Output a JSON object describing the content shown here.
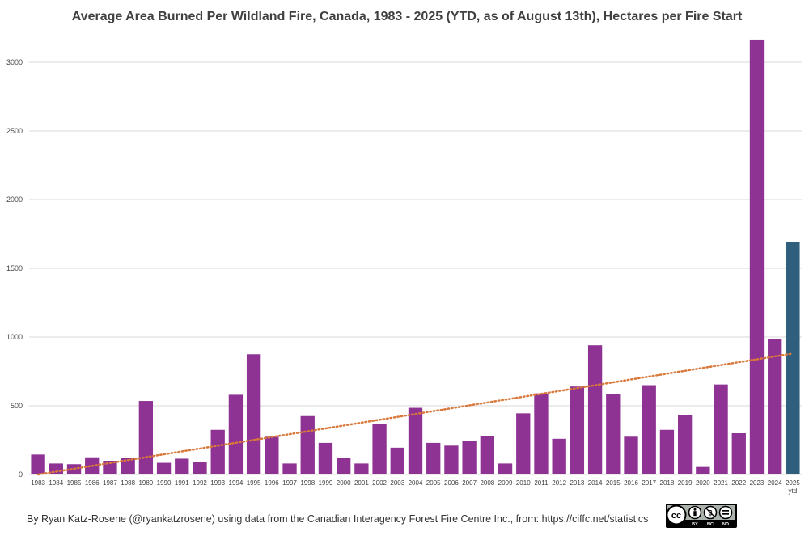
{
  "colors": {
    "bar": "#8e3393",
    "bar_highlight": "#2f5f7c",
    "trend": "#d8783a",
    "grid": "#d9d9d9",
    "text": "#404040"
  },
  "chart_data": {
    "type": "bar",
    "title": "Average Area Burned Per Wildland Fire, Canada, 1983 - 2025 (YTD, as of August 13th), Hectares per Fire Start",
    "xlabel": "",
    "ylabel": "",
    "ylim": [
      0,
      3200
    ],
    "yticks": [
      0,
      500,
      1000,
      1500,
      2000,
      2500,
      3000
    ],
    "grid": true,
    "legend": "none",
    "categories": [
      "1983",
      "1984",
      "1985",
      "1986",
      "1987",
      "1988",
      "1989",
      "1990",
      "1991",
      "1992",
      "1993",
      "1994",
      "1995",
      "1996",
      "1997",
      "1998",
      "1999",
      "2000",
      "2001",
      "2002",
      "2003",
      "2004",
      "2005",
      "2006",
      "2007",
      "2008",
      "2009",
      "2010",
      "2011",
      "2012",
      "2013",
      "2014",
      "2015",
      "2016",
      "2017",
      "2018",
      "2019",
      "2020",
      "2021",
      "2022",
      "2023",
      "2024",
      "2025"
    ],
    "category_sublabels": {
      "2025": "ytd"
    },
    "values": [
      145,
      80,
      75,
      125,
      100,
      120,
      535,
      85,
      115,
      90,
      325,
      580,
      875,
      275,
      80,
      425,
      230,
      120,
      80,
      365,
      195,
      485,
      230,
      210,
      245,
      280,
      80,
      445,
      590,
      260,
      640,
      940,
      585,
      275,
      650,
      325,
      430,
      55,
      655,
      300,
      3165,
      985,
      1690
    ],
    "highlight_category": "2025",
    "trendline": {
      "type": "linear",
      "style": "dotted",
      "start": [
        1983,
        0
      ],
      "end": [
        2025,
        880
      ]
    }
  },
  "footer": {
    "credit": "By Ryan Katz-Rosene (@ryankatzrosene) using data from the Canadian Interagency Forest Fire Centre Inc., from: https://ciffc.net/statistics",
    "license_badge": {
      "icons": [
        "cc-icon",
        "by-icon",
        "nc-icon",
        "nd-icon"
      ],
      "cc_text": "cc",
      "labels": [
        "BY",
        "NC",
        "ND"
      ]
    }
  }
}
